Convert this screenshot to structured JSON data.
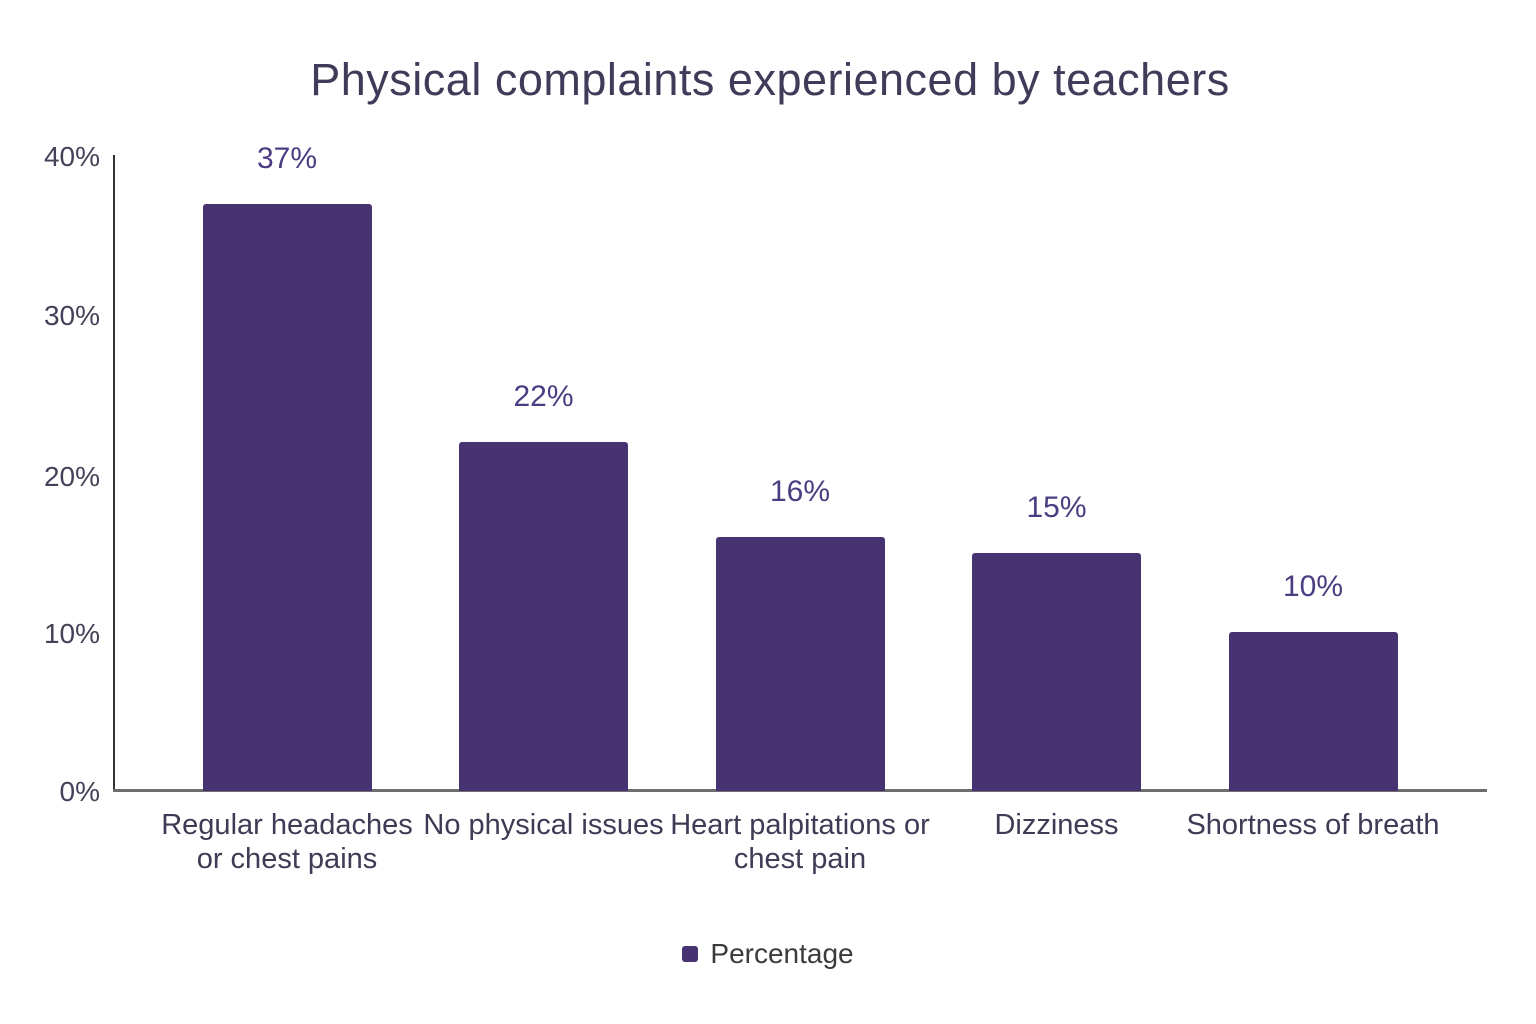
{
  "chart_data": {
    "type": "bar",
    "title": "Physical complaints experienced by teachers",
    "categories": [
      "Regular headaches or chest pains",
      "No physical issues",
      "Heart palpitations or chest pain",
      "Dizziness",
      "Shortness of breath"
    ],
    "category_lines": [
      [
        "Regular headaches",
        "or chest pains"
      ],
      [
        "No physical issues"
      ],
      [
        "Heart palpitations or",
        "chest pain"
      ],
      [
        "Dizziness"
      ],
      [
        "Shortness of breath"
      ]
    ],
    "series": [
      {
        "name": "Percentage",
        "values": [
          37,
          22,
          16,
          15,
          10
        ]
      }
    ],
    "value_labels": [
      "37%",
      "22%",
      "16%",
      "15%",
      "10%"
    ],
    "y_ticks": [
      "0%",
      "10%",
      "20%",
      "30%",
      "40%"
    ],
    "ylim": [
      0,
      40
    ],
    "grid": false,
    "legend_position": "bottom",
    "colors": {
      "bar": "#473272",
      "value_label": "#4c3c82",
      "title": "#3f3b58",
      "axis_text": "#454158",
      "legend_text": "#3b3b3b",
      "axis_line_vertical": "#333333",
      "axis_line_horizontal": "#6e6e6e"
    }
  },
  "legend": {
    "items": [
      {
        "label": "Percentage",
        "color": "#473272"
      }
    ]
  }
}
